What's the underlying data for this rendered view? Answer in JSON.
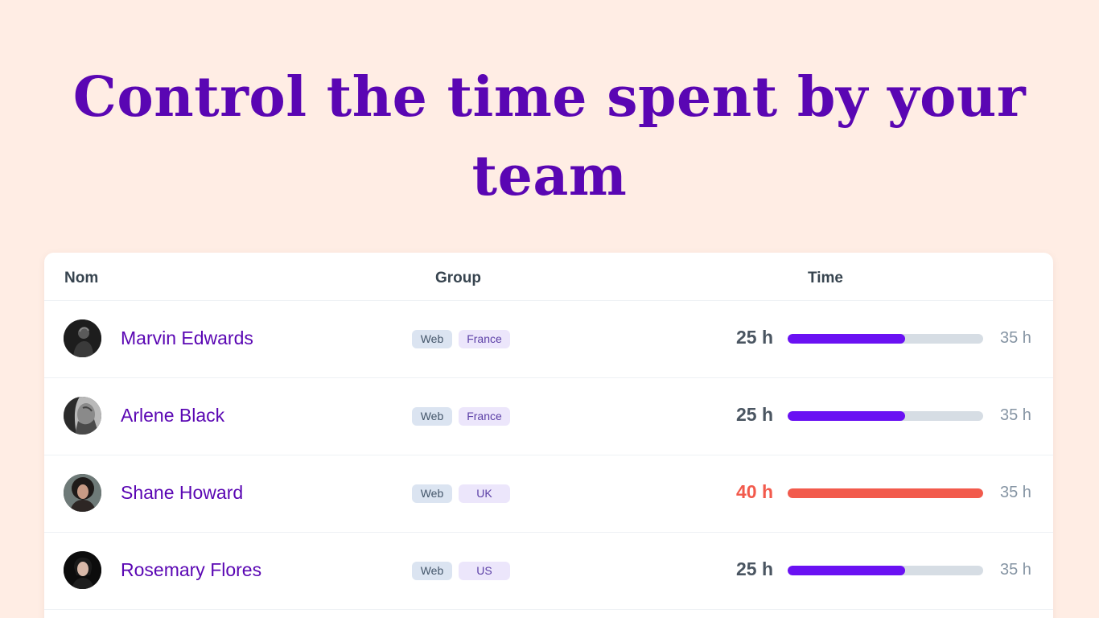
{
  "headline": {
    "line1": "Control the time spent by your",
    "line2": "team"
  },
  "table": {
    "headers": {
      "name": "Nom",
      "group": "Group",
      "time": "Time"
    },
    "rows": [
      {
        "name": "Marvin Edwards",
        "group": "Web",
        "region": "France",
        "hours": "25 h",
        "target": "35 h",
        "progress": 0.6,
        "over": false,
        "avatar_icon": "person-portrait-dark"
      },
      {
        "name": "Arlene Black",
        "group": "Web",
        "region": "France",
        "hours": "25 h",
        "target": "35 h",
        "progress": 0.6,
        "over": false,
        "avatar_icon": "person-portrait-grayscale"
      },
      {
        "name": "Shane Howard",
        "group": "Web",
        "region": "UK",
        "hours": "40 h",
        "target": "35 h",
        "progress": 1.0,
        "over": true,
        "avatar_icon": "person-portrait-curly"
      },
      {
        "name": "Rosemary Flores",
        "group": "Web",
        "region": "US",
        "hours": "25 h",
        "target": "35 h",
        "progress": 0.6,
        "over": false,
        "avatar_icon": "person-portrait-black"
      }
    ]
  },
  "colors": {
    "background": "#ffede4",
    "accent": "#5a06b3",
    "progress": "#6a11f3",
    "over": "#f25a4c",
    "track": "#d6dde4"
  }
}
